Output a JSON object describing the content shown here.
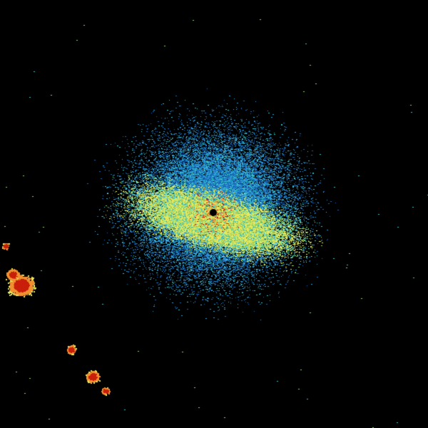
{
  "image": {
    "kind": "radar-reflectivity-scan",
    "background_color": "#000000",
    "palette": {
      "light_blue": "#2a9fd6",
      "blue": "#1668b8",
      "cyan": "#3cc0c0",
      "green": "#8fd36a",
      "yellow": "#e8e85a",
      "orange": "#f09030",
      "red": "#c81e0a",
      "dark_red": "#8a0a00"
    }
  }
}
